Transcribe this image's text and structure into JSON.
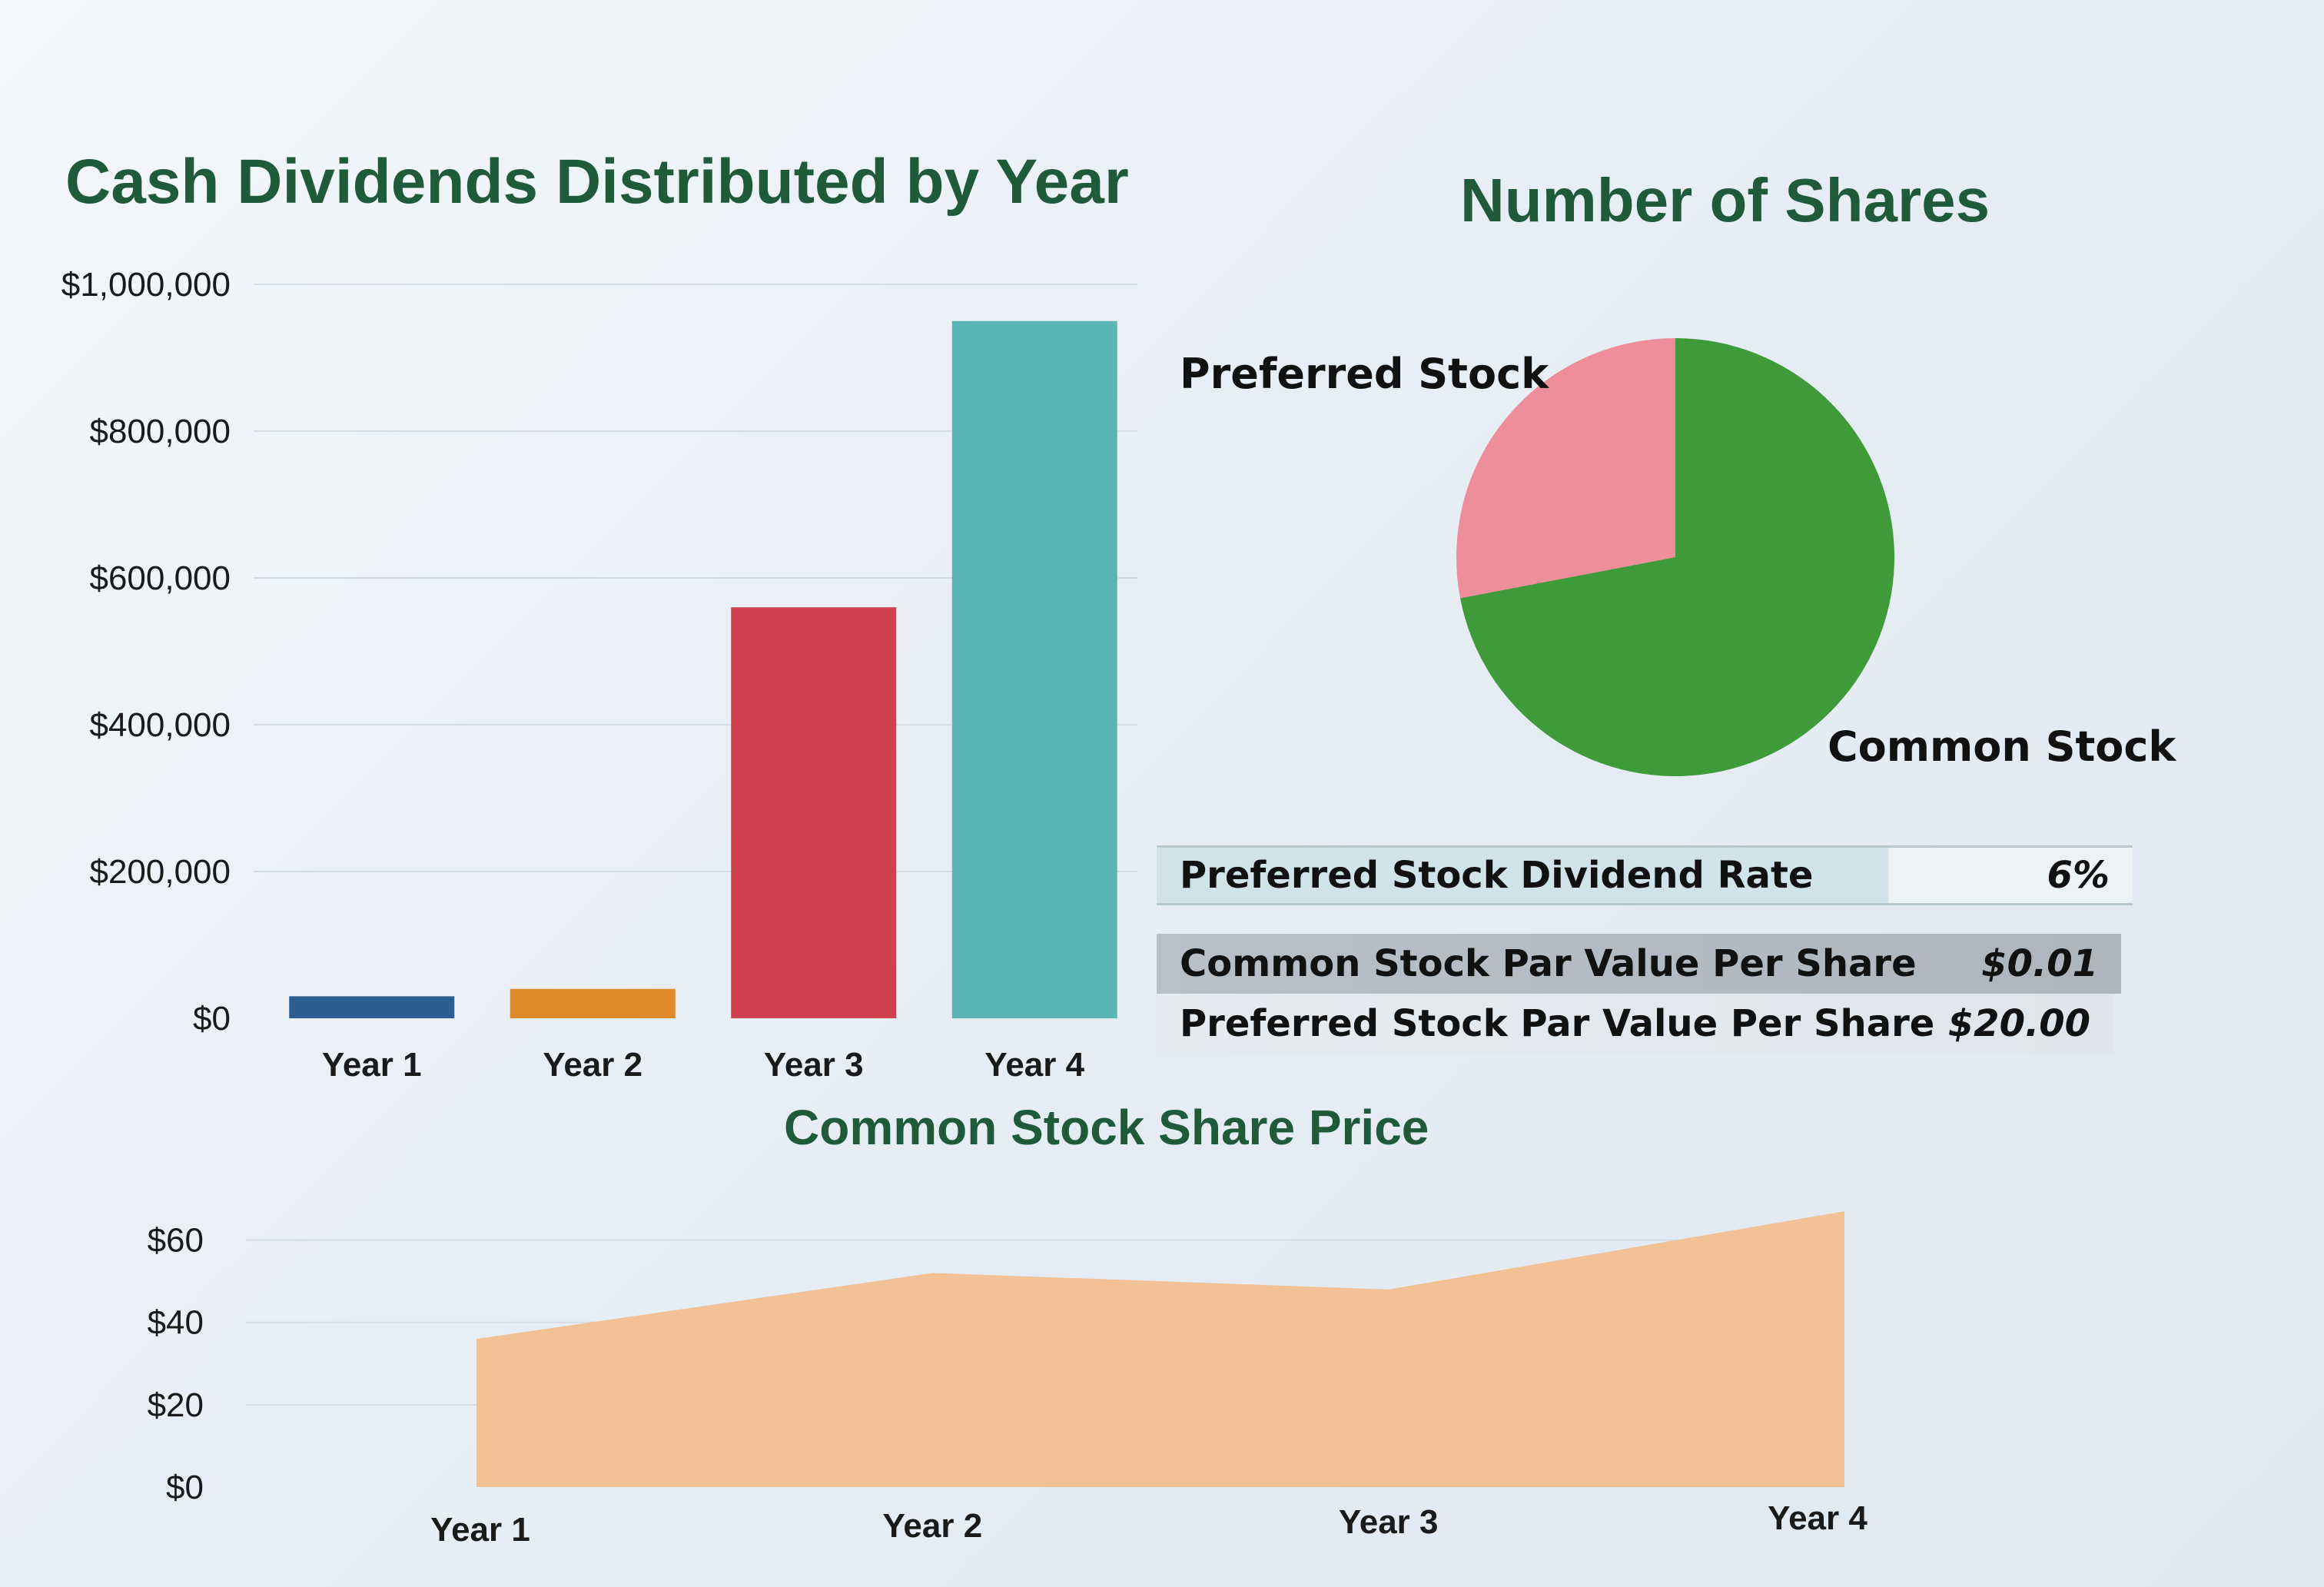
{
  "colors": {
    "title_green": "#1f5a3a",
    "year1": "#2c5f91",
    "year2": "#e08a2c",
    "year3": "#cf424d",
    "year4": "#5ab5b5",
    "preferred": "#ee8e9b",
    "common": "#3f9a3a",
    "area": "#f2c195"
  },
  "chart_data": [
    {
      "type": "bar",
      "title": "Cash Dividends Distributed by Year",
      "categories": [
        "Year 1",
        "Year 2",
        "Year 3",
        "Year 4"
      ],
      "values": [
        30000,
        40000,
        560000,
        950000
      ],
      "yticks": [
        "$0",
        "$200,000",
        "$400,000",
        "$600,000",
        "$800,000",
        "$1,000,000"
      ],
      "ytick_values": [
        0,
        200000,
        400000,
        600000,
        800000,
        1000000
      ],
      "ylim": [
        0,
        1000000
      ],
      "grid": true
    },
    {
      "type": "pie",
      "title": "Number of Shares",
      "labels": [
        "Preferred Stock",
        "Common Stock"
      ],
      "values": [
        28,
        72
      ]
    },
    {
      "type": "area",
      "title": "Common Stock Share Price",
      "categories": [
        "Year 1",
        "Year 2",
        "Year 3",
        "Year 4"
      ],
      "values": [
        36,
        52,
        48,
        67
      ],
      "yticks": [
        "$0",
        "$20",
        "$40",
        "$60"
      ],
      "ytick_values": [
        0,
        20,
        40,
        60
      ],
      "ylim": [
        0,
        70
      ],
      "grid": true
    }
  ],
  "info_table": {
    "dividend_rate_label": "Preferred Stock Dividend Rate",
    "dividend_rate_value": "6%",
    "common_par_label": "Common Stock Par Value Per Share",
    "common_par_value": "$0.01",
    "preferred_par_label": "Preferred Stock Par Value Per Share",
    "preferred_par_value": "$20.00"
  }
}
